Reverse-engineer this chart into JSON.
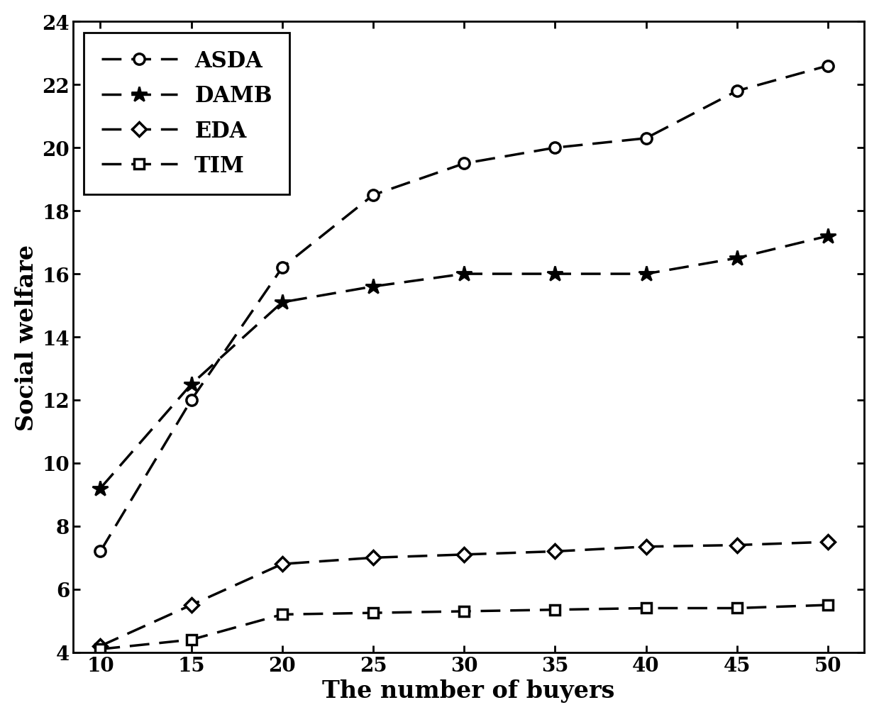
{
  "x": [
    10,
    15,
    20,
    25,
    30,
    35,
    40,
    45,
    50
  ],
  "ASDA": [
    7.2,
    12.0,
    16.2,
    18.5,
    19.5,
    20.0,
    20.3,
    21.8,
    22.6
  ],
  "DAMB": [
    9.2,
    12.5,
    15.1,
    15.6,
    16.0,
    16.0,
    16.0,
    16.5,
    17.2
  ],
  "EDA": [
    4.2,
    5.5,
    6.8,
    7.0,
    7.1,
    7.2,
    7.35,
    7.4,
    7.5
  ],
  "TIM": [
    4.1,
    4.4,
    5.2,
    5.25,
    5.3,
    5.35,
    5.4,
    5.4,
    5.5
  ],
  "xlabel": "The number of buyers",
  "ylabel": "Social welfare",
  "xlim": [
    8.5,
    52
  ],
  "ylim": [
    4,
    24
  ],
  "xticks": [
    10,
    15,
    20,
    25,
    30,
    35,
    40,
    45,
    50
  ],
  "yticks": [
    4,
    6,
    8,
    10,
    12,
    14,
    16,
    18,
    20,
    22,
    24
  ],
  "line_color": "#000000",
  "line_style": "--",
  "linewidth": 2.5,
  "markersize": 11,
  "legend_loc": "upper left",
  "font_size": 22,
  "label_fontsize": 24,
  "tick_fontsize": 20
}
